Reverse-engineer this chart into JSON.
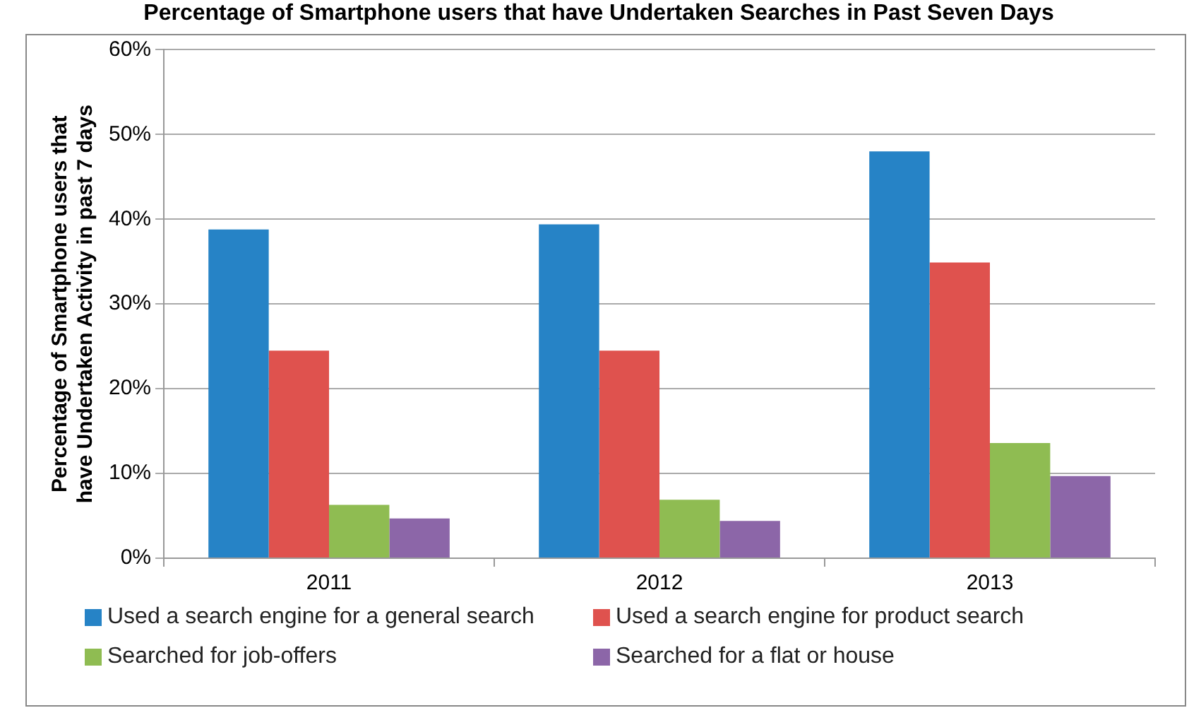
{
  "chart_data": {
    "type": "bar",
    "title": "Percentage of Smartphone users that have Undertaken Searches in Past Seven Days",
    "ylabel": "Percentage of Smartphone users that have Undertaken Activity in past 7 days",
    "categories": [
      "2011",
      "2012",
      "2013"
    ],
    "series": [
      {
        "name": "Used a search engine for a general search",
        "color": "#2683c6",
        "values": [
          38.8,
          39.4,
          48.0
        ]
      },
      {
        "name": "Used a search engine for product search",
        "color": "#df524e",
        "values": [
          24.5,
          24.5,
          34.9
        ]
      },
      {
        "name": "Searched for job-offers",
        "color": "#8fbc52",
        "values": [
          6.3,
          6.9,
          13.6
        ]
      },
      {
        "name": "Searched for a flat or house",
        "color": "#8c66a8",
        "values": [
          4.7,
          4.4,
          9.7
        ]
      }
    ],
    "ylim": [
      0,
      60
    ],
    "yticks": [
      {
        "value": 0,
        "label": "0%"
      },
      {
        "value": 10,
        "label": "10%"
      },
      {
        "value": 20,
        "label": "20%"
      },
      {
        "value": 30,
        "label": "30%"
      },
      {
        "value": 40,
        "label": "40%"
      },
      {
        "value": 50,
        "label": "50%"
      },
      {
        "value": 60,
        "label": "60%"
      }
    ],
    "grid": "y",
    "legend": "bottom"
  }
}
